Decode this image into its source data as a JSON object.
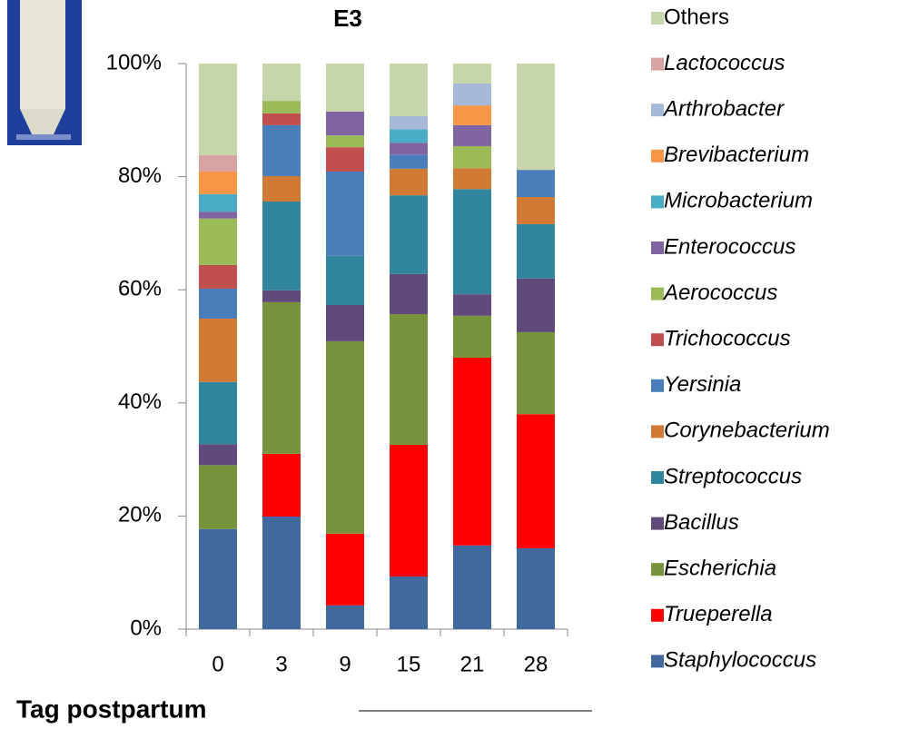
{
  "chart_data": {
    "type": "stacked_bar",
    "title": "E3",
    "x_label": "Tag postpartum",
    "categories": [
      "0",
      "3",
      "9",
      "15",
      "21",
      "28"
    ],
    "ylim": [
      0,
      100
    ],
    "yticks": [
      {
        "value": 0,
        "label": "0%"
      },
      {
        "value": 20,
        "label": "20%"
      },
      {
        "value": 40,
        "label": "40%"
      },
      {
        "value": 60,
        "label": "60%"
      },
      {
        "value": 80,
        "label": "80%"
      },
      {
        "value": 100,
        "label": "100%"
      }
    ],
    "series": [
      {
        "name": "Staphylococcus",
        "color": "#41699e",
        "values": [
          17.7,
          19.9,
          4.2,
          9.3,
          14.8,
          14.3
        ]
      },
      {
        "name": "Trueperella",
        "color": "#ff0000",
        "values": [
          0,
          11.1,
          12.7,
          23.3,
          33.2,
          23.7
        ]
      },
      {
        "name": "Escherichia",
        "color": "#77933c",
        "values": [
          11.3,
          26.8,
          34.0,
          23.1,
          7.4,
          14.5
        ]
      },
      {
        "name": "Bacillus",
        "color": "#604a7b",
        "values": [
          3.7,
          2.1,
          6.4,
          7.1,
          3.8,
          9.5
        ]
      },
      {
        "name": "Streptococcus",
        "color": "#31859c",
        "values": [
          11.0,
          15.7,
          8.7,
          13.9,
          18.6,
          9.6
        ]
      },
      {
        "name": "Corynebacterium",
        "color": "#d07a35",
        "values": [
          11.2,
          4.5,
          0,
          4.7,
          3.7,
          4.8
        ]
      },
      {
        "name": "Yersinia",
        "color": "#4a7ebb",
        "values": [
          5.3,
          9.0,
          14.9,
          2.5,
          0,
          4.8
        ]
      },
      {
        "name": "Trichococcus",
        "color": "#c0504d",
        "values": [
          4.2,
          2.1,
          4.3,
          0,
          0,
          0
        ]
      },
      {
        "name": "Aerococcus",
        "color": "#9bbb59",
        "values": [
          8.2,
          2.2,
          2.1,
          0,
          3.9,
          0
        ]
      },
      {
        "name": "Enterococcus",
        "color": "#8064a2",
        "values": [
          1.2,
          0,
          4.2,
          2.1,
          3.7,
          0
        ]
      },
      {
        "name": "Microbacterium",
        "color": "#4bacc6",
        "values": [
          3.1,
          0,
          0,
          2.4,
          0,
          0
        ]
      },
      {
        "name": "Brevibacterium",
        "color": "#f79646",
        "values": [
          4.0,
          0,
          0,
          0,
          3.5,
          0
        ]
      },
      {
        "name": "Arthrobacter",
        "color": "#a7b9d8",
        "values": [
          0,
          0,
          0,
          2.3,
          3.9,
          0
        ]
      },
      {
        "name": "Lactococcus",
        "color": "#d9a3a3",
        "values": [
          2.9,
          0,
          0,
          0,
          0,
          0
        ]
      },
      {
        "name": "Others",
        "color": "#c6d6a8",
        "values": [
          16.2,
          6.6,
          8.5,
          9.3,
          3.5,
          18.8
        ]
      }
    ]
  }
}
